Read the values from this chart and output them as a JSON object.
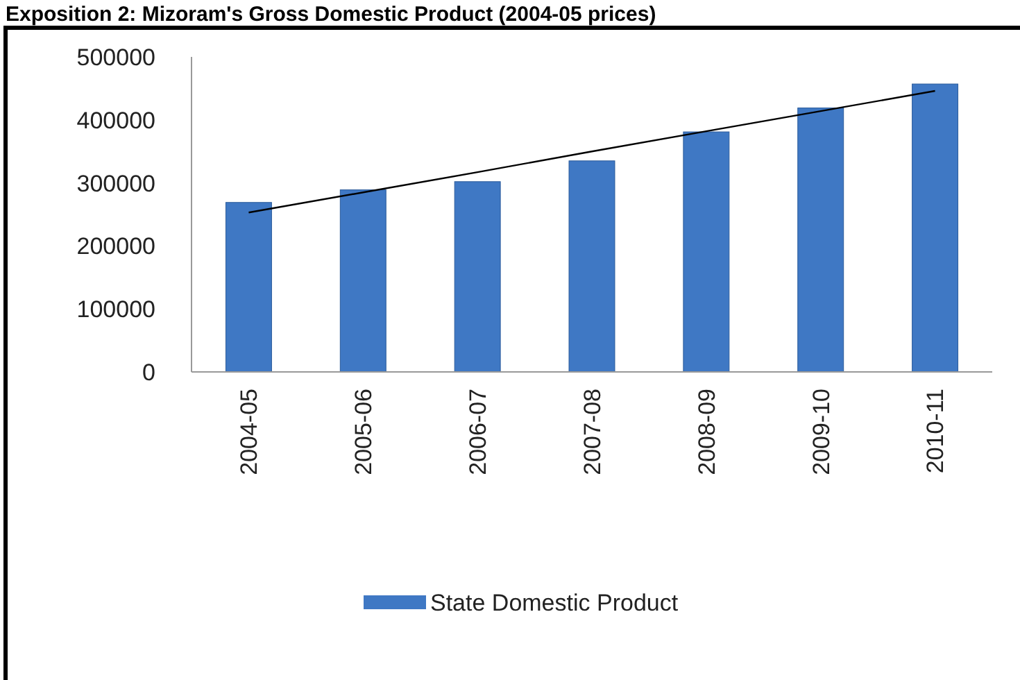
{
  "chart_data": {
    "type": "bar",
    "title": "Exposition 2: Mizoram's Gross Domestic Product (2004-05 prices)",
    "categories": [
      "2004-05",
      "2005-06",
      "2006-07",
      "2007-08",
      "2008-09",
      "2009-10",
      "2010-11"
    ],
    "series": [
      {
        "name": "State Domestic Product",
        "color": "#3f78c4",
        "values": [
          269000,
          289000,
          302000,
          335000,
          381000,
          419000,
          457000
        ]
      },
      {
        "type": "line",
        "color": "#000000",
        "values": [
          253000,
          285000,
          317000,
          350000,
          382000,
          414000,
          446000
        ]
      }
    ],
    "ylim": [
      0,
      500000
    ],
    "yticks": [
      0,
      100000,
      200000,
      300000,
      400000,
      500000
    ],
    "grid": false,
    "legend": "bottom"
  }
}
